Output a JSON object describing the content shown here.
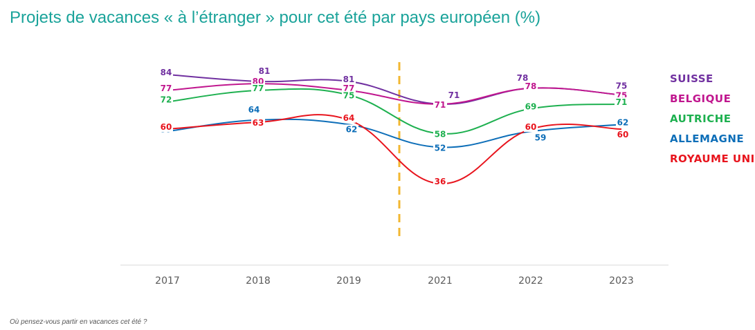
{
  "title": "Projets de vacances « à l’étranger » pour cet été par pays européen (%)",
  "footnote": "Où pensez-vous partir en vacances cet été ?",
  "chart_data": {
    "type": "line",
    "categories": [
      "2017",
      "2018",
      "2019",
      "2021",
      "2022",
      "2023"
    ],
    "ylim": [
      20,
      90
    ],
    "grid": false,
    "legend_position": "right",
    "divider_between": [
      "2019",
      "2021"
    ],
    "series": [
      {
        "name": "SUISSE",
        "color": "#7030a0",
        "values": [
          84,
          81,
          81,
          71,
          78,
          75
        ]
      },
      {
        "name": "BELGIQUE",
        "color": "#c0168e",
        "values": [
          77,
          80,
          77,
          71,
          78,
          75
        ]
      },
      {
        "name": "AUTRICHE",
        "color": "#1db04f",
        "values": [
          72,
          77,
          75,
          58,
          69,
          71
        ]
      },
      {
        "name": "ALLEMAGNE",
        "color": "#0d6eb8",
        "values": [
          59,
          64,
          62,
          52,
          59,
          62
        ]
      },
      {
        "name": "ROYAUME UNI",
        "color": "#e8141d",
        "values": [
          60,
          63,
          64,
          36,
          60,
          60
        ]
      }
    ]
  }
}
